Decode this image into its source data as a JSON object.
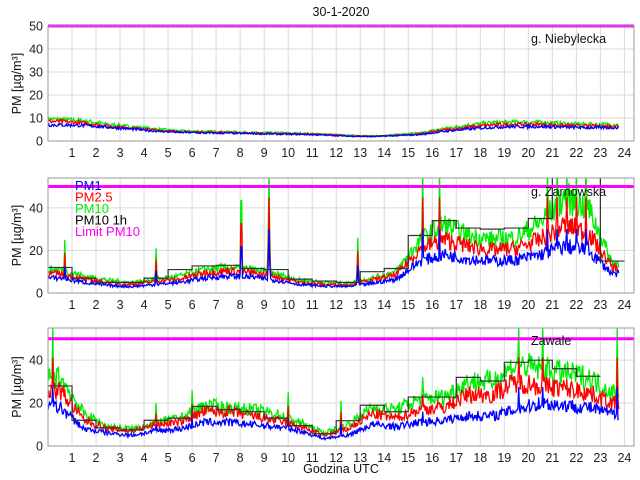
{
  "chart_data": {
    "type": "line",
    "title": "30-1-2020",
    "xlabel": "Godzina UTC",
    "ylabel": "PM [µg/m³]",
    "xlim": [
      0,
      24.4
    ],
    "xticks": [
      "1",
      "2",
      "3",
      "4",
      "5",
      "6",
      "7",
      "8",
      "9",
      "10",
      "11",
      "12",
      "13",
      "14",
      "15",
      "16",
      "17",
      "18",
      "19",
      "20",
      "21",
      "22",
      "23",
      "24"
    ],
    "grid": true,
    "colors": {
      "PM1": "#0000ff",
      "PM2.5": "#ff0000",
      "PM10": "#00ee00",
      "PM10 1h": "#000000",
      "Limit PM10": "#ff00ff"
    },
    "legend": {
      "placement": "top-left of second panel",
      "entries": [
        "PM1",
        "PM2.5",
        "PM10",
        "PM10 1h",
        "Limit PM10"
      ]
    },
    "limit_pm10": 50,
    "panels": [
      {
        "station": "g. Niebylecka",
        "ylim": [
          0,
          50
        ],
        "yticks": [
          "0",
          "10",
          "20",
          "30",
          "40",
          "50"
        ],
        "hourly_x": "hour midpoints 0.5..23.5",
        "series": [
          {
            "name": "PM1",
            "values": [
              7,
              6.8,
              6,
              5.2,
              4.3,
              3.8,
              3.5,
              3.4,
              3.2,
              3,
              2.9,
              2.6,
              2.1,
              1.9,
              2.3,
              2.8,
              4.2,
              5.2,
              6,
              6.3,
              6.3,
              6,
              5.8,
              5.8
            ]
          },
          {
            "name": "PM2.5",
            "values": [
              8.5,
              7.8,
              6.5,
              5.6,
              4.7,
              4,
              3.8,
              3.7,
              3.4,
              3.2,
              3.1,
              2.8,
              2.3,
              2,
              2.5,
              3.1,
              4.8,
              6,
              7,
              7.3,
              7.2,
              6.8,
              6.5,
              6.5
            ]
          },
          {
            "name": "PM10",
            "values": [
              9.5,
              8.8,
              7.2,
              6.2,
              5.2,
              4.4,
              4.2,
              4,
              3.7,
              3.6,
              3.4,
              3,
              2.5,
              2.2,
              2.8,
              3.5,
              5.5,
              7,
              8,
              8.3,
              8.2,
              7.6,
              7.2,
              7.2
            ]
          },
          {
            "name": "PM10 1h",
            "values": []
          }
        ],
        "spikes": []
      },
      {
        "station": "g. Zarnowska",
        "ylim": [
          0,
          54
        ],
        "yticks": [
          "0",
          "20",
          "40"
        ],
        "series": [
          {
            "name": "PM1",
            "values": [
              7,
              5,
              3.5,
              3,
              4,
              5,
              7,
              8,
              7.5,
              6,
              4,
              3.2,
              3,
              4.5,
              6.5,
              15,
              18,
              16,
              15,
              15.5,
              18,
              22,
              20,
              9
            ]
          },
          {
            "name": "PM2.5",
            "values": [
              9,
              6.5,
              4.8,
              4,
              5.5,
              6.5,
              9.5,
              10.5,
              9.5,
              7.8,
              5,
              4,
              3.8,
              6,
              8.5,
              21,
              25,
              22,
              20,
              21,
              25,
              32,
              28,
              12
            ]
          },
          {
            "name": "PM10",
            "values": [
              11,
              8,
              6,
              5,
              6.5,
              8,
              11,
              12,
              11,
              9,
              6,
              5,
              4.5,
              7,
              10,
              25,
              32,
              27,
              25,
              26,
              33,
              45,
              40,
              14
            ]
          },
          {
            "name": "PM10 1h",
            "values": [
              12,
              7,
              5,
              5,
              7,
              11,
              12.7,
              13,
              11.5,
              11,
              6.5,
              5.6,
              5,
              10,
              11.5,
              27,
              34,
              30.5,
              30,
              30.5,
              35,
              60,
              60,
              15
            ]
          }
        ],
        "spikes": [
          [
            0.7,
            25
          ],
          [
            4.5,
            21
          ],
          [
            8.05,
            60
          ],
          [
            9.2,
            60
          ],
          [
            12.9,
            26
          ],
          [
            15.6,
            60
          ],
          [
            16.3,
            60
          ],
          [
            20.8,
            60
          ],
          [
            21.2,
            60
          ],
          [
            21.6,
            60
          ],
          [
            22.0,
            60
          ],
          [
            22.4,
            60
          ]
        ]
      },
      {
        "station": "Zawale",
        "ylim": [
          0,
          55
        ],
        "yticks": [
          "0",
          "20",
          "40"
        ],
        "series": [
          {
            "name": "PM1",
            "values": [
              18,
              8,
              6,
              5,
              7,
              8,
              11,
              11,
              10,
              9,
              7,
              3.5,
              5,
              10,
              9,
              11,
              12,
              14,
              14,
              17,
              20,
              19,
              18,
              15
            ]
          },
          {
            "name": "PM2.5",
            "values": [
              26,
              12,
              8,
              7,
              10,
              11,
              16,
              16,
              14,
              12,
              9,
              5,
              8,
              15,
              13,
              17,
              18,
              24,
              24,
              30,
              28,
              27,
              25,
              20
            ]
          },
          {
            "name": "PM10",
            "values": [
              32,
              15,
              9,
              8,
              11,
              13,
              19,
              18,
              17,
              15,
              11,
              6,
              10,
              18,
              17,
              22,
              23,
              30,
              30,
              38,
              36,
              34,
              32,
              25
            ]
          },
          {
            "name": "PM10 1h",
            "values": [
              28,
              12,
              8.5,
              7.5,
              12,
              13,
              18.5,
              17,
              16,
              13,
              9.5,
              5.7,
              11.8,
              19,
              16,
              22.8,
              22.8,
              32,
              30.3,
              39,
              40,
              36,
              32.5,
              null
            ]
          }
        ],
        "spikes": [
          [
            0.2,
            55
          ],
          [
            4.5,
            20
          ],
          [
            6.0,
            26
          ],
          [
            10.0,
            25
          ],
          [
            12.2,
            21
          ],
          [
            15.6,
            32
          ],
          [
            19.6,
            55
          ],
          [
            20.6,
            55
          ],
          [
            23.7,
            55
          ]
        ]
      }
    ]
  }
}
